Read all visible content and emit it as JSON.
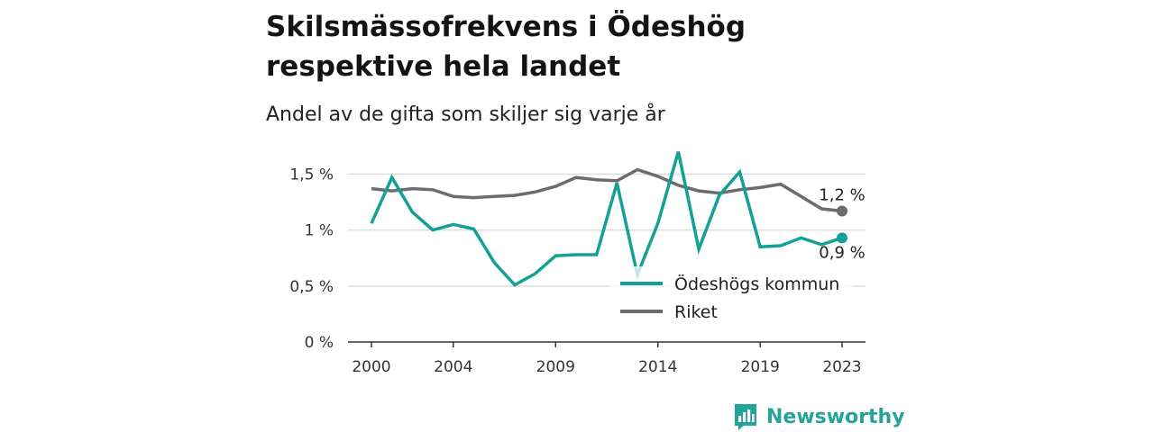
{
  "title": "Skilsmässofrekvens i Ödeshög respektive hela landet",
  "subtitle": "Andel av de gifta som skiljer sig varje år",
  "brand": "Newsworthy",
  "colors": {
    "odeshog": "#13a097",
    "riket": "#6b6b70",
    "grid": "#dcdcdc",
    "axis": "#333333"
  },
  "chart_data": {
    "type": "line",
    "ylim": [
      0,
      1.6
    ],
    "xlim": [
      2000,
      2023
    ],
    "yticks": [
      0,
      0.5,
      1,
      1.5
    ],
    "ytick_labels": [
      "0 %",
      "0,5 %",
      "1 %",
      "1,5 %"
    ],
    "xticks": [
      2000,
      2004,
      2009,
      2014,
      2019,
      2023
    ],
    "xtick_labels": [
      "2000",
      "2004",
      "2009",
      "2014",
      "2019",
      "2023"
    ],
    "grid": true,
    "legend_position": "bottom-right",
    "series": [
      {
        "name": "Ödeshögs kommun",
        "color": "#13a097",
        "end_label": "0,9 %",
        "x": [
          2000,
          2001,
          2002,
          2003,
          2004,
          2005,
          2006,
          2007,
          2008,
          2009,
          2010,
          2011,
          2012,
          2013,
          2014,
          2015,
          2016,
          2017,
          2018,
          2019,
          2020,
          2021,
          2022,
          2023
        ],
        "values": [
          1.06,
          1.47,
          1.16,
          1.0,
          1.05,
          1.01,
          0.71,
          0.51,
          0.61,
          0.77,
          0.78,
          0.78,
          1.42,
          0.6,
          1.06,
          1.7,
          0.83,
          1.31,
          1.52,
          0.85,
          0.86,
          0.93,
          0.87,
          0.93
        ]
      },
      {
        "name": "Riket",
        "color": "#6b6b70",
        "end_label": "1,2 %",
        "x": [
          2000,
          2001,
          2002,
          2003,
          2004,
          2005,
          2006,
          2007,
          2008,
          2009,
          2010,
          2011,
          2012,
          2013,
          2014,
          2015,
          2016,
          2017,
          2018,
          2019,
          2020,
          2021,
          2022,
          2023
        ],
        "values": [
          1.37,
          1.35,
          1.37,
          1.36,
          1.3,
          1.29,
          1.3,
          1.31,
          1.34,
          1.39,
          1.47,
          1.45,
          1.44,
          1.54,
          1.48,
          1.4,
          1.35,
          1.33,
          1.36,
          1.38,
          1.41,
          1.3,
          1.19,
          1.17
        ]
      }
    ]
  }
}
